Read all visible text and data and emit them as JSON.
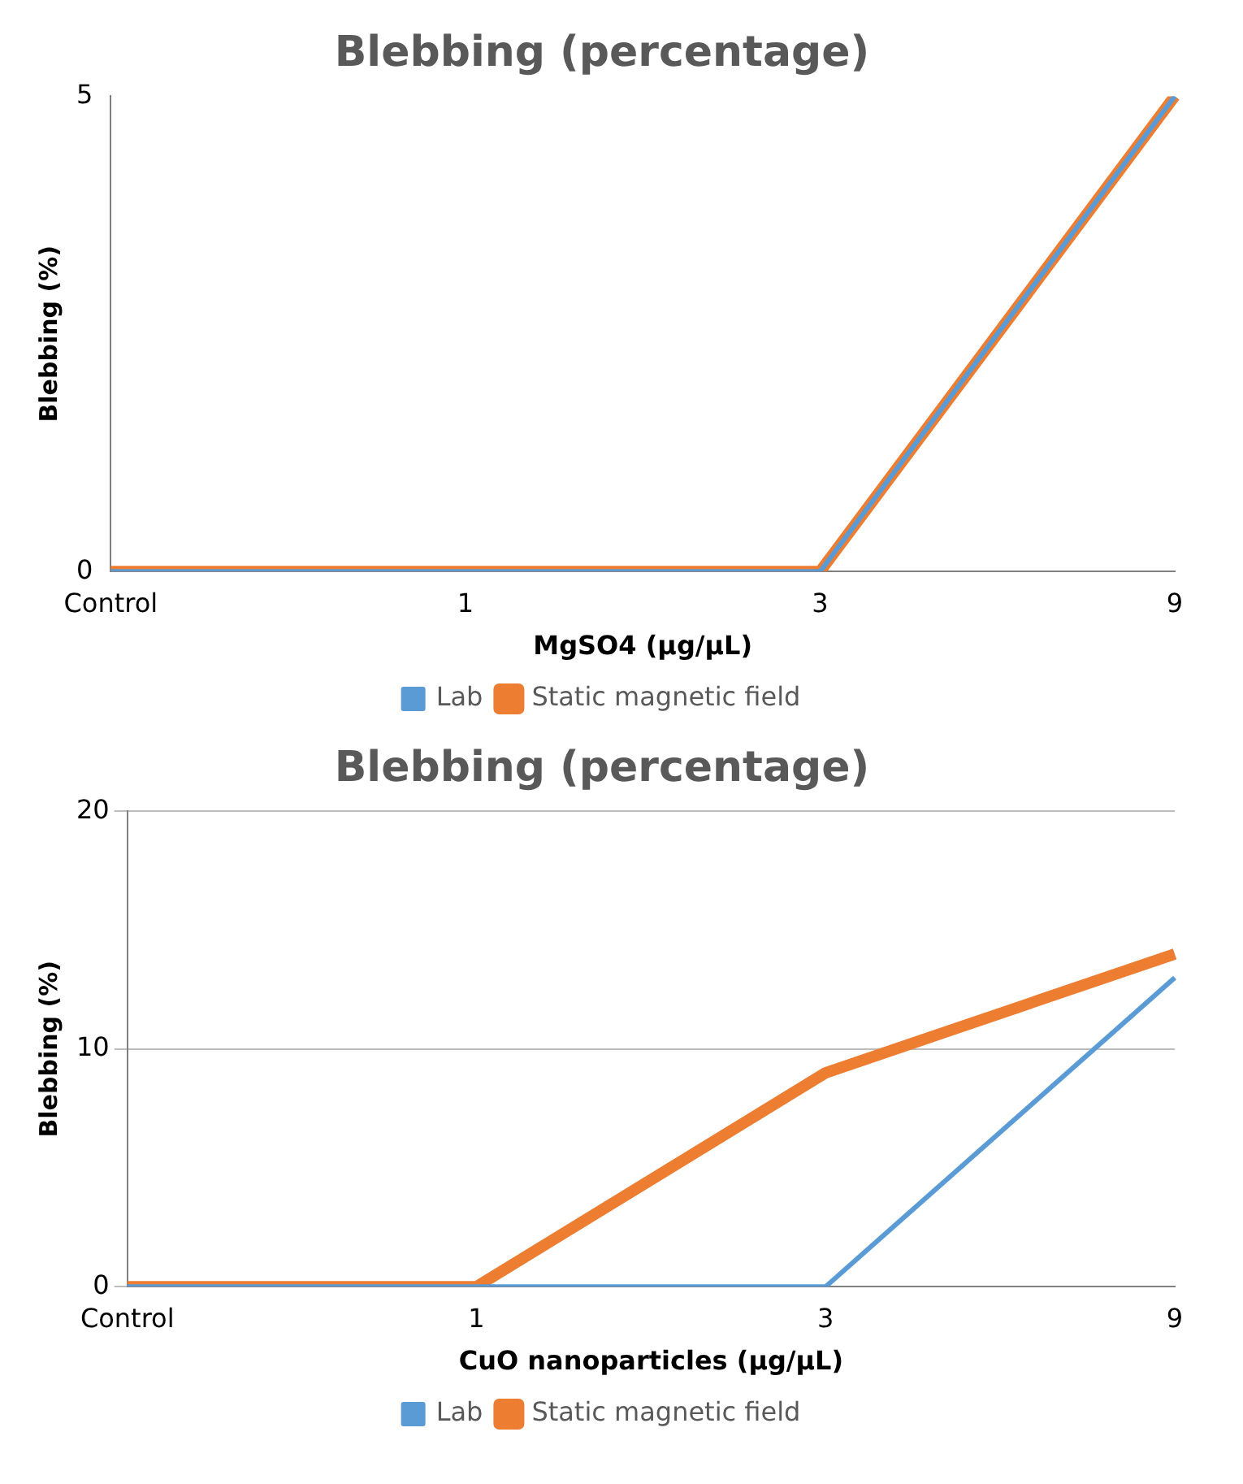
{
  "chart_data": [
    {
      "type": "line",
      "title": "Blebbing (percentage)",
      "xlabel": "MgSO4 (µg/µL)",
      "ylabel": "Blebbing (%)",
      "categories": [
        "Control",
        "1",
        "3",
        "9"
      ],
      "series": [
        {
          "name": "Lab",
          "color": "#5b9bd5",
          "values": [
            0,
            0,
            0,
            5
          ]
        },
        {
          "name": "Static magnetic field",
          "color": "#ed7d31",
          "values": [
            0,
            0,
            0,
            5
          ]
        }
      ],
      "ylim": [
        0,
        5
      ],
      "yticks": [
        0,
        5
      ],
      "legend": "bottom",
      "marker": "none"
    },
    {
      "type": "line",
      "title": "Blebbing (percentage)",
      "xlabel": "CuO nanoparticles (µg/µL)",
      "ylabel": "Blebbing (%)",
      "categories": [
        "Control",
        "1",
        "3",
        "9"
      ],
      "series": [
        {
          "name": "Lab",
          "color": "#5b9bd5",
          "values": [
            0,
            0,
            0,
            13
          ]
        },
        {
          "name": "Static magnetic field",
          "color": "#ed7d31",
          "values": [
            0,
            0,
            9,
            14
          ]
        }
      ],
      "ylim": [
        0,
        20
      ],
      "yticks": [
        0,
        10,
        20
      ],
      "grid": "y",
      "legend": "bottom",
      "marker": "none"
    }
  ]
}
